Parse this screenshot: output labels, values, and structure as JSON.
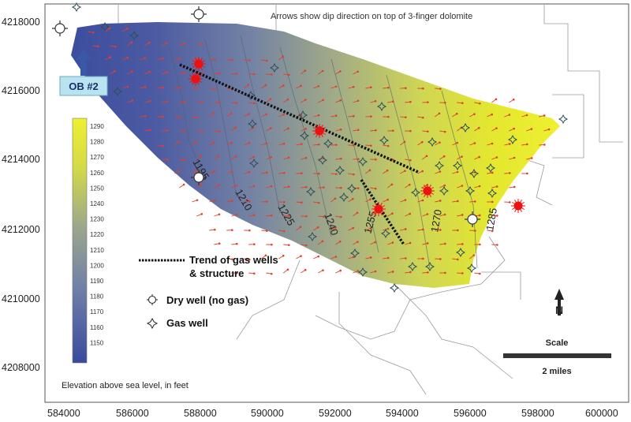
{
  "map": {
    "title_note": "Arrows show dip direction on top of 3-finger dolomite",
    "caption": "Elevation above sea level, in feet",
    "y_axis_ticks": [
      "4218000",
      "4216000",
      "4214000",
      "4212000",
      "4210000",
      "4208000"
    ],
    "x_axis_ticks": [
      "584000",
      "586000",
      "588000",
      "590000",
      "592000",
      "594000",
      "596000",
      "598000",
      "600000"
    ],
    "colorbar_ticks": [
      "1290",
      "1280",
      "1270",
      "1260",
      "1250",
      "1240",
      "1230",
      "1220",
      "1210",
      "1200",
      "1190",
      "1180",
      "1170",
      "1160",
      "1150"
    ],
    "contour_labels": [
      "1195",
      "1210",
      "1225",
      "1240",
      "1255",
      "1270",
      "1285"
    ],
    "ob_label": "OB #2",
    "legend": {
      "trend_line1": "Trend of gas wells",
      "trend_line2": "& structure",
      "dry_well": "Dry well (no gas)",
      "gas_well": "Gas well"
    },
    "scale": {
      "title": "Scale",
      "label": "2 miles"
    },
    "north_symbol": "N",
    "colors": {
      "low": "#3f4f9e",
      "mid": "#8f9d8a",
      "high": "#e8ea2c",
      "arrow": "#e0402a",
      "gas_well_red": "#ee1111",
      "ob_box": "#b8e4f0",
      "ob_arrow": "#3050a0"
    }
  }
}
